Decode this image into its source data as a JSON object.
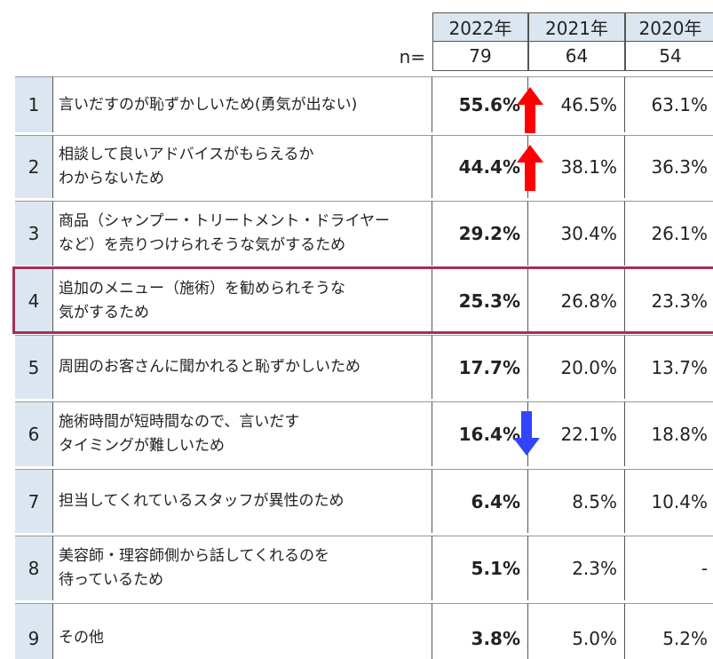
{
  "header": {
    "years": [
      "2022年",
      "2021年",
      "2020年"
    ],
    "n_label": "n=",
    "n": [
      "79",
      "64",
      "54"
    ]
  },
  "table": {
    "rows": [
      {
        "num": "1",
        "label": [
          "言いだすのが恥ずかしいため(勇気が出ない)"
        ],
        "values": [
          "55.6%",
          "46.5%",
          "63.1%"
        ]
      },
      {
        "num": "2",
        "label": [
          "相談して良いアドバイスがもらえるか",
          "わからないため"
        ],
        "values": [
          "44.4%",
          "38.1%",
          "36.3%"
        ]
      },
      {
        "num": "3",
        "label": [
          "商品（シャンプー・トリートメント・ドライヤー",
          "など）を売りつけられそうな気がするため"
        ],
        "values": [
          "29.2%",
          "30.4%",
          "26.1%"
        ]
      },
      {
        "num": "4",
        "label": [
          "追加のメニュー（施術）を勧められそうな",
          "気がするため"
        ],
        "values": [
          "25.3%",
          "26.8%",
          "23.3%"
        ]
      },
      {
        "num": "5",
        "label": [
          "周囲のお客さんに聞かれると恥ずかしいため"
        ],
        "values": [
          "17.7%",
          "20.0%",
          "13.7%"
        ]
      },
      {
        "num": "6",
        "label": [
          "施術時間が短時間なので、言いだす",
          "タイミングが難しいため"
        ],
        "values": [
          "16.4%",
          "22.1%",
          "18.8%"
        ]
      },
      {
        "num": "7",
        "label": [
          "担当してくれているスタッフが異性のため"
        ],
        "values": [
          "6.4%",
          "8.5%",
          "10.4%"
        ]
      },
      {
        "num": "8",
        "label": [
          "美容師・理容師側から話してくれるのを",
          "待っているため"
        ],
        "values": [
          "5.1%",
          "2.3%",
          "-"
        ]
      },
      {
        "num": "9",
        "label": [
          "その他"
        ],
        "values": [
          "3.8%",
          "5.0%",
          "5.2%"
        ]
      }
    ]
  }
}
